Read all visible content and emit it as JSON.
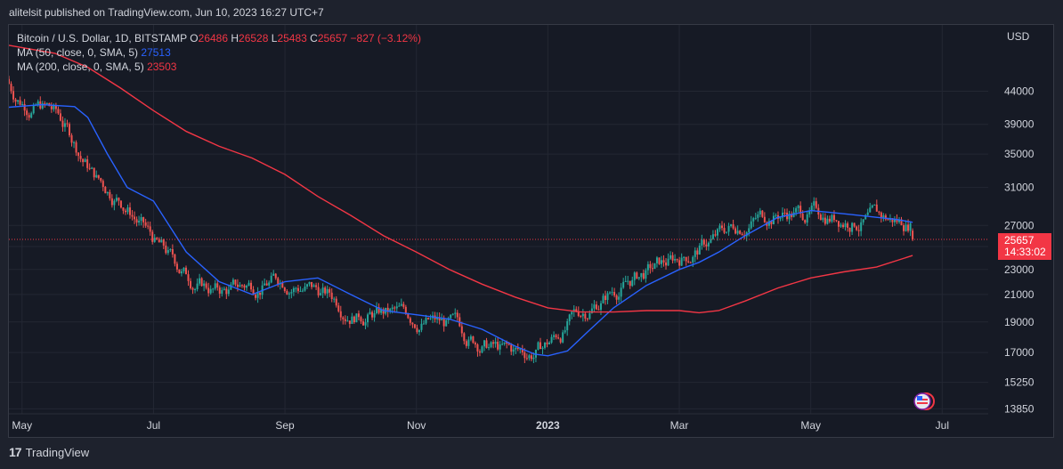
{
  "caption": "alitelsit published on TradingView.com, Jun 10, 2023 16:27 UTC+7",
  "legend": {
    "symbol": "Bitcoin / U.S. Dollar, 1D, BITSTAMP",
    "o_label": "O",
    "o_value": "26486",
    "h_label": "H",
    "h_value": "26528",
    "l_label": "L",
    "l_value": "25483",
    "c_label": "C",
    "c_value": "25657",
    "change": "−827 (−3.12%)",
    "ma50_label": "MA (50, close, 0, SMA, 5)",
    "ma50_value": "27513",
    "ma200_label": "MA (200, close, 0, SMA, 5)",
    "ma200_value": "23503"
  },
  "price_axis": {
    "currency": "USD",
    "last_price": "25657",
    "countdown": "14:33:02"
  },
  "footer": {
    "brand": "TradingView"
  },
  "colors": {
    "up": "#26a69a",
    "down": "#ef5350",
    "ma50": "#2962ff",
    "ma200": "#f23645",
    "background": "#161a25"
  },
  "chart_data": {
    "type": "line",
    "title": "Bitcoin / U.S. Dollar, 1D, BITSTAMP",
    "scale": "log",
    "y_ticks": [
      13850,
      15250,
      17000,
      19000,
      21000,
      23000,
      25000,
      27000,
      31000,
      35000,
      39000,
      44000
    ],
    "y_tick_labels": [
      "13850",
      "15250",
      "17000",
      "19000",
      "21000",
      "23000",
      "25000",
      "27000",
      "31000",
      "35000",
      "39000",
      "44000"
    ],
    "x_tick_labels": [
      "May",
      "Jul",
      "Sep",
      "Nov",
      "2023",
      "Mar",
      "May",
      "Jul"
    ],
    "x_tick_months": [
      0,
      2,
      4,
      6,
      8,
      10,
      12,
      14
    ],
    "ylim": [
      13600,
      56000
    ],
    "xlim": [
      -0.2,
      14.7
    ],
    "last_price": 25657,
    "series": [
      {
        "name": "MA (50, close, 0, SMA, 5)",
        "x": [
          -0.2,
          0.3,
          0.8,
          1.0,
          1.3,
          1.6,
          2.0,
          2.5,
          3.0,
          3.5,
          4.0,
          4.5,
          5.0,
          5.5,
          6.0,
          6.5,
          7.0,
          7.5,
          7.8,
          8.0,
          8.3,
          8.6,
          9.0,
          9.5,
          10.0,
          10.3,
          10.6,
          11.0,
          11.5,
          12.0,
          12.3,
          12.6,
          13.0,
          13.3,
          13.55
        ],
        "values": [
          41500,
          41900,
          41600,
          40000,
          35000,
          31000,
          29500,
          24500,
          22000,
          21000,
          22000,
          22300,
          21000,
          19800,
          19500,
          19200,
          18500,
          17400,
          16900,
          16800,
          17100,
          18300,
          20000,
          21700,
          23000,
          23600,
          24500,
          26000,
          27800,
          28500,
          28300,
          28100,
          27800,
          27600,
          27300
        ]
      },
      {
        "name": "MA (200, close, 0, SMA, 5)",
        "x": [
          -0.2,
          0.5,
          1.0,
          1.5,
          2.0,
          2.5,
          3.0,
          3.5,
          4.0,
          4.5,
          5.0,
          5.5,
          6.0,
          6.5,
          7.0,
          7.5,
          8.0,
          8.5,
          9.0,
          9.5,
          10.0,
          10.3,
          10.6,
          11.0,
          11.5,
          12.0,
          12.5,
          13.0,
          13.55
        ],
        "values": [
          52000,
          50500,
          48000,
          44500,
          41000,
          38000,
          36000,
          34500,
          32500,
          30000,
          28000,
          26000,
          24500,
          23000,
          21800,
          20800,
          20000,
          19700,
          19700,
          19800,
          19800,
          19650,
          19800,
          20500,
          21500,
          22300,
          22800,
          23200,
          24200
        ]
      }
    ]
  }
}
